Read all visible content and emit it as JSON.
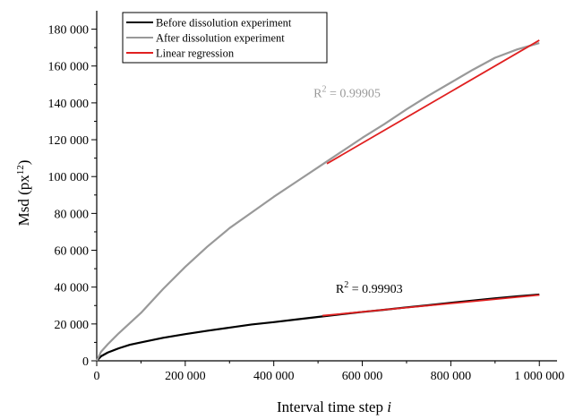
{
  "chart_data": {
    "type": "line",
    "xlabel": "Interval time step i",
    "xlabel_main": "Interval time step ",
    "xlabel_italic": "i",
    "ylabel_pre": "Msd (px",
    "ylabel_sup": "1",
    "ylabel_sup2": "2",
    "ylabel_post": ")",
    "xlim": [
      0,
      1040000
    ],
    "ylim": [
      0,
      190000
    ],
    "x_ticks": [
      0,
      200000,
      400000,
      600000,
      800000,
      1000000
    ],
    "x_tick_labels": [
      "0",
      "200 000",
      "400 000",
      "600 000",
      "800 000",
      "1 000 000"
    ],
    "y_ticks": [
      0,
      20000,
      40000,
      60000,
      80000,
      100000,
      120000,
      140000,
      160000,
      180000
    ],
    "y_tick_labels": [
      "0",
      "20 000",
      "40 000",
      "60 000",
      "80 000",
      "100 000",
      "120 000",
      "140 000",
      "160 000",
      "180 000"
    ],
    "legend_position": "top-left",
    "legend": [
      "Before dissolution experiment",
      "After dissolution experiment",
      "Linear regression"
    ],
    "series": [
      {
        "name": "Before dissolution experiment",
        "color": "#000000",
        "x": [
          0,
          10000,
          25000,
          50000,
          75000,
          100000,
          150000,
          200000,
          250000,
          300000,
          350000,
          400000,
          450000,
          500000,
          550000,
          600000,
          650000,
          700000,
          750000,
          800000,
          850000,
          900000,
          950000,
          1000000
        ],
        "y": [
          0,
          2500,
          4500,
          6800,
          8700,
          10000,
          12500,
          14500,
          16300,
          18000,
          19700,
          21000,
          22400,
          23800,
          25200,
          26500,
          27700,
          29000,
          30200,
          31500,
          32700,
          33900,
          35000,
          36000
        ]
      },
      {
        "name": "After dissolution experiment",
        "color": "#999999",
        "x": [
          0,
          10000,
          25000,
          50000,
          75000,
          100000,
          150000,
          200000,
          250000,
          300000,
          350000,
          400000,
          450000,
          500000,
          550000,
          600000,
          650000,
          700000,
          750000,
          800000,
          850000,
          900000,
          950000,
          1000000
        ],
        "y": [
          0,
          5000,
          9000,
          15000,
          20500,
          26000,
          39000,
          51000,
          62000,
          72000,
          80500,
          89000,
          97000,
          105000,
          113000,
          121000,
          128500,
          136500,
          144000,
          151000,
          158000,
          164500,
          169000,
          172500
        ]
      },
      {
        "name": "Linear regression",
        "color": "#e02020",
        "segments": [
          {
            "x": [
              520000,
              1000000
            ],
            "y": [
              107000,
              174000
            ]
          },
          {
            "x": [
              510000,
              1000000
            ],
            "y": [
              24500,
              35700
            ]
          }
        ]
      }
    ],
    "annotations": [
      {
        "pre": "R",
        "sup": "2",
        "post": " = 0.99905",
        "x": 490000,
        "y": 143000,
        "color": "#999999"
      },
      {
        "pre": "R",
        "sup": "2",
        "post": " = 0.99903",
        "x": 540000,
        "y": 37000,
        "color": "#000000"
      }
    ]
  }
}
